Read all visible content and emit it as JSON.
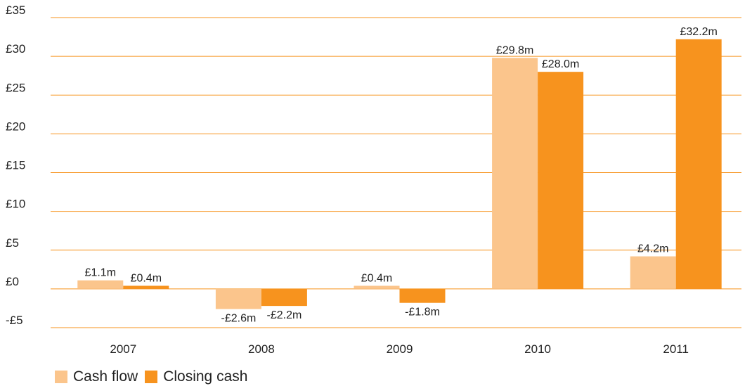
{
  "chart_data": {
    "type": "bar",
    "categories": [
      "2007",
      "2008",
      "2009",
      "2010",
      "2011"
    ],
    "series": [
      {
        "name": "Cash flow",
        "color": "#fbc58c",
        "values": [
          1.1,
          -2.6,
          0.4,
          29.8,
          4.2
        ],
        "labels": [
          "£1.1m",
          "-£2.6m",
          "£0.4m",
          "£29.8m",
          "£4.2m"
        ]
      },
      {
        "name": "Closing cash",
        "color": "#f7931e",
        "values": [
          0.4,
          -2.2,
          -1.8,
          28.0,
          32.2
        ],
        "labels": [
          "£0.4m",
          "-£2.2m",
          "-£1.8m",
          "£28.0m",
          "£32.2m"
        ]
      }
    ],
    "yticks": [
      35,
      30,
      25,
      20,
      15,
      10,
      5,
      0,
      -5
    ],
    "ytick_labels": [
      "£35",
      "£30",
      "£25",
      "£20",
      "£15",
      "£10",
      "£5",
      "£0",
      "-£5"
    ],
    "ylim": [
      -5,
      35
    ],
    "grid": true,
    "gridline_color": "#f7931e",
    "legend_position": "bottom-left"
  }
}
